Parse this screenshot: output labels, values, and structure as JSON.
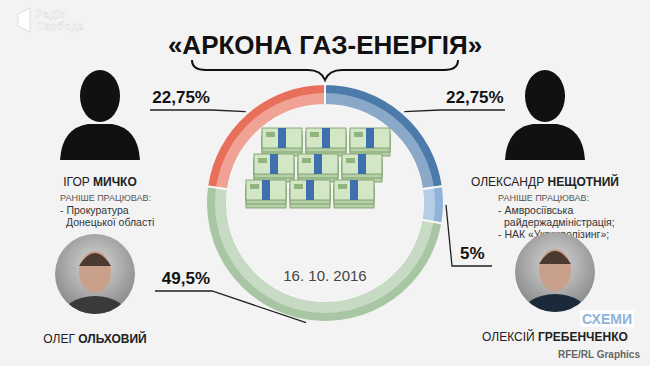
{
  "chart_data": {
    "type": "donut",
    "title": "«АРКОНА ГАЗ-ЕНЕРГІЯ»",
    "categories": [
      "ОЛЕКСАНДР НЕЩОТНИЙ",
      "ОЛЕКСІЙ ГРЕБЕНЧЕНКО",
      "ОЛЕГ ОЛЬХОВИЙ",
      "ІГОР МИЧКО"
    ],
    "values": [
      22.75,
      5,
      49.5,
      22.75
    ],
    "value_labels": [
      "22,75%",
      "5%",
      "49,5%",
      "22,75%"
    ],
    "colors": [
      "#4c7bab",
      "#8fb3d9",
      "#a9c6a4",
      "#e8705b"
    ],
    "data_labels": true,
    "careers": [
      {
        "label": "РАНІШЕ ПРАЦЮВАВ:",
        "lines": [
          "- Амвросіївська",
          "райдержадміністрація;",
          "- НАК «Украгролізинг»;"
        ]
      },
      null,
      null,
      {
        "label": "РАНІШЕ ПРАЦЮВАВ:",
        "lines": [
          "- Прокуратура",
          "Донецької області"
        ]
      }
    ],
    "annotations": {
      "date": "16. 10. 2016",
      "logo": [
        "Радіо",
        "Свобода"
      ],
      "program": "СХЕМИ",
      "source": "RFE/RL Graphics"
    }
  }
}
